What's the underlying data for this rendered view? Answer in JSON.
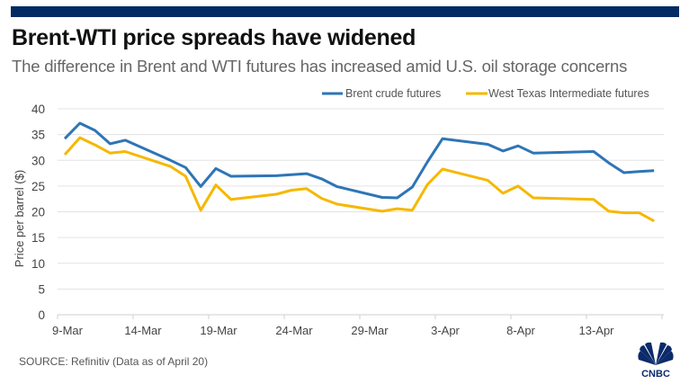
{
  "header": {
    "title": "Brent-WTI price spreads have widened",
    "subtitle": "The difference in Brent and WTI futures has increased amid U.S. oil storage concerns"
  },
  "source": "SOURCE: Refinitiv (Data as of April 20)",
  "logo": "CNBC",
  "chart_data": {
    "type": "line",
    "ylabel": "Price per barrel ($)",
    "ylim": [
      0,
      40
    ],
    "yticks": [
      0,
      5,
      10,
      15,
      20,
      25,
      30,
      35,
      40
    ],
    "xticks": [
      "9-Mar",
      "14-Mar",
      "19-Mar",
      "24-Mar",
      "29-Mar",
      "3-Apr",
      "8-Apr",
      "13-Apr"
    ],
    "grid": true,
    "legend": "top-right",
    "x": [
      "2020-03-09",
      "2020-03-10",
      "2020-03-11",
      "2020-03-12",
      "2020-03-13",
      "2020-03-16",
      "2020-03-17",
      "2020-03-18",
      "2020-03-19",
      "2020-03-20",
      "2020-03-23",
      "2020-03-24",
      "2020-03-25",
      "2020-03-26",
      "2020-03-27",
      "2020-03-30",
      "2020-03-31",
      "2020-04-01",
      "2020-04-02",
      "2020-04-03",
      "2020-04-06",
      "2020-04-07",
      "2020-04-08",
      "2020-04-09",
      "2020-04-13",
      "2020-04-14",
      "2020-04-15",
      "2020-04-16",
      "2020-04-17"
    ],
    "series": [
      {
        "name": "Brent crude futures",
        "color": "#2e75b6",
        "values": [
          34.2,
          37.2,
          35.8,
          33.2,
          33.9,
          30.0,
          28.6,
          24.9,
          28.4,
          26.9,
          27.0,
          27.2,
          27.4,
          26.4,
          24.9,
          22.8,
          22.7,
          24.8,
          29.7,
          34.2,
          33.1,
          31.8,
          32.8,
          31.4,
          31.7,
          29.5,
          27.6,
          27.8,
          28.0
        ]
      },
      {
        "name": "West Texas Intermediate futures",
        "color": "#f5b800",
        "values": [
          31.1,
          34.4,
          33.0,
          31.4,
          31.7,
          28.8,
          26.9,
          20.3,
          25.2,
          22.4,
          23.4,
          24.2,
          24.5,
          22.6,
          21.5,
          20.1,
          20.6,
          20.3,
          25.3,
          28.3,
          26.1,
          23.6,
          25.0,
          22.7,
          22.4,
          20.1,
          19.8,
          19.8,
          18.2
        ]
      }
    ]
  }
}
